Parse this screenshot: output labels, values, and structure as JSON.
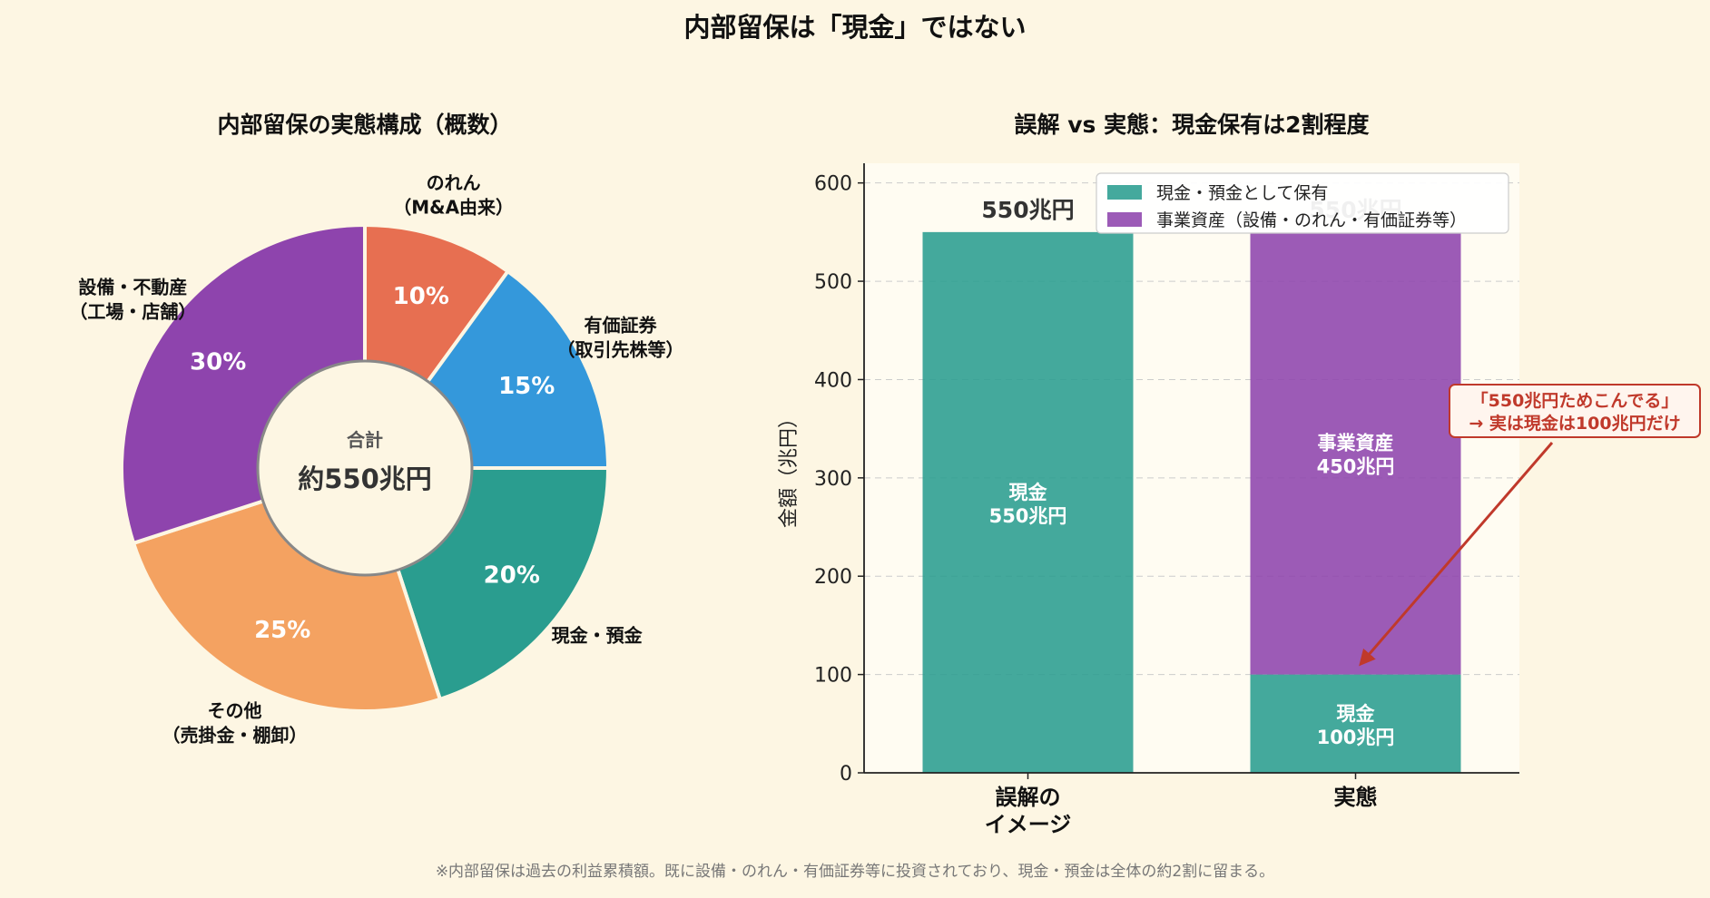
{
  "title": "内部留保は「現金」ではない",
  "footnote": "※内部留保は過去の利益累積額。既に設備・のれん・有価証券等に投資されており、現金・預金は全体の約2割に留まる。",
  "colors": {
    "background": "#FDF6E3",
    "cash": "#2A9D8F",
    "business_assets": "#8E44AD",
    "goodwill": "#E76F51",
    "securities": "#3498DB",
    "other": "#F4A261",
    "annotation": "#C0392B"
  },
  "chart_data": [
    {
      "type": "pie",
      "title": "内部留保の実態構成（概数）",
      "center_label": "合計",
      "center_value": "約550兆円",
      "slices": [
        {
          "label": [
            "のれん",
            "（M&A由来）"
          ],
          "value": 10,
          "display": "10%",
          "color": "#E76F51"
        },
        {
          "label": [
            "有価証券",
            "（取引先株等）"
          ],
          "value": 15,
          "display": "15%",
          "color": "#3498DB"
        },
        {
          "label": [
            "現金・預金"
          ],
          "value": 20,
          "display": "20%",
          "color": "#2A9D8F"
        },
        {
          "label": [
            "その他",
            "（売掛金・棚卸）"
          ],
          "value": 25,
          "display": "25%",
          "color": "#F4A261"
        },
        {
          "label": [
            "設備・不動産",
            "（工場・店舗）"
          ],
          "value": 30,
          "display": "30%",
          "color": "#8E44AD"
        }
      ]
    },
    {
      "type": "bar",
      "stacked": true,
      "title": "誤解 vs 実態：現金保有は2割程度",
      "ylabel": "金額（兆円）",
      "ylim": [
        0,
        620
      ],
      "yticks": [
        0,
        100,
        200,
        300,
        400,
        500,
        600
      ],
      "grid": "y-dashed",
      "legend_position": "top-right",
      "categories": [
        [
          "誤解の",
          "イメージ"
        ],
        [
          "実態"
        ]
      ],
      "series": [
        {
          "name": "現金・預金として保有",
          "color": "#2A9D8F",
          "values": [
            550,
            100
          ],
          "labels": [
            [
              "現金",
              "550兆円"
            ],
            [
              "現金",
              "100兆円"
            ]
          ]
        },
        {
          "name": "事業資産（設備・のれん・有価証券等）",
          "color": "#8E44AD",
          "values": [
            0,
            450
          ],
          "labels": [
            null,
            [
              "事業資産",
              "450兆円"
            ]
          ]
        }
      ],
      "totals": [
        "550兆円",
        "550兆円"
      ],
      "annotation": {
        "text": [
          "「550兆円ためこんでる」",
          "→ 実は現金は100兆円だけ"
        ],
        "target_category": 1,
        "target_value": 100
      }
    }
  ]
}
